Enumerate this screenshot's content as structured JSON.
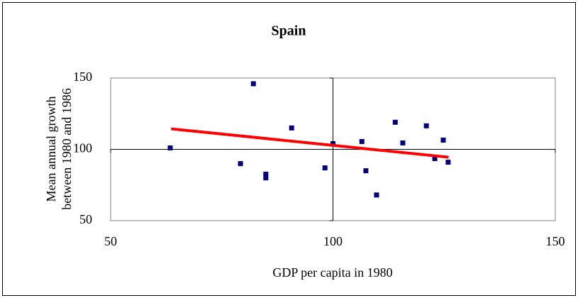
{
  "chart_data": {
    "type": "scatter",
    "title": "Spain",
    "xlabel": "GDP per capita in 1980",
    "ylabel": [
      "Mean annual growth",
      "between 1980 and 1986"
    ],
    "xlim": [
      50,
      150
    ],
    "xticks": [
      50,
      100,
      150
    ],
    "ylim": [
      50,
      150
    ],
    "yticks": [
      50,
      100,
      150
    ],
    "axis_cross": {
      "x": 100,
      "y": 100
    },
    "series": [
      {
        "color": "#000080",
        "marker": "square",
        "x": [
          63.4,
          79.2,
          82.1,
          84.9,
          84.9,
          90.7,
          98.2,
          100,
          106.5,
          107.4,
          109.8,
          114,
          115.7,
          121,
          122.9,
          124.8,
          125.9
        ],
        "values": [
          101,
          90,
          146,
          82.6,
          80,
          115,
          87,
          104,
          105.5,
          85,
          68,
          119,
          104.5,
          116.5,
          93.5,
          106.5,
          91
        ]
      },
      {
        "color": "#ff0000",
        "marker": "line",
        "x": [
          63.6,
          126
        ],
        "values": [
          114.4,
          94.5
        ]
      }
    ]
  }
}
